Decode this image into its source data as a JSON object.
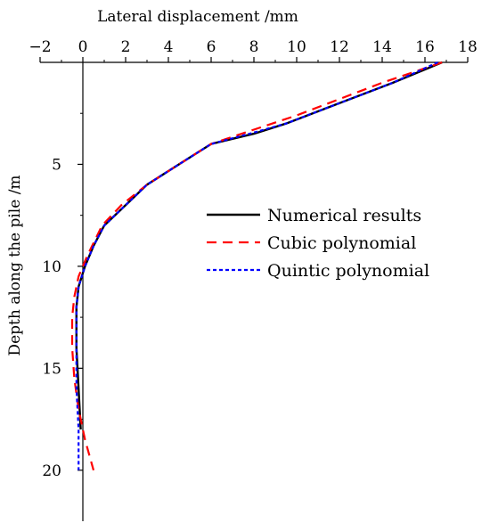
{
  "chart_data": {
    "type": "line",
    "title": "",
    "xlabel": "Lateral displacement /mm",
    "ylabel": "Depth along the pile /m",
    "x_axis_position": "top",
    "y_axis_inverted": true,
    "xlim": [
      -2,
      18
    ],
    "ylim": [
      0,
      22.5
    ],
    "xticks": [
      -2,
      0,
      2,
      4,
      6,
      8,
      10,
      12,
      14,
      16,
      18
    ],
    "yticks": [
      5,
      10,
      15,
      20
    ],
    "grid": false,
    "legend_position": "right-center",
    "series": [
      {
        "name": "Numerical results",
        "color": "#000000",
        "dash": "solid",
        "x": [
          16.8,
          14.5,
          12.0,
          9.5,
          8.0,
          6.0,
          4.5,
          3.0,
          2.0,
          1.0,
          0.5,
          0.1,
          -0.2,
          -0.3,
          -0.3,
          -0.2,
          -0.1
        ],
        "y": [
          0,
          1.0,
          2.0,
          3.0,
          3.5,
          4.0,
          5.0,
          6.0,
          7.0,
          8.0,
          9.0,
          10.0,
          11.0,
          12.0,
          14.0,
          16.0,
          18.0
        ]
      },
      {
        "name": "Cubic polynomial",
        "color": "#ff0000",
        "dash": "long",
        "x": [
          16.8,
          14.0,
          12.0,
          10.0,
          8.0,
          6.0,
          4.5,
          3.0,
          1.8,
          0.9,
          0.2,
          -0.2,
          -0.4,
          -0.5,
          -0.5,
          -0.4,
          -0.2,
          0.1,
          0.5
        ],
        "y": [
          0,
          1.0,
          1.8,
          2.6,
          3.3,
          4.0,
          5.0,
          6.0,
          7.0,
          8.0,
          9.5,
          10.5,
          11.5,
          12.5,
          14.0,
          15.5,
          17.0,
          18.5,
          20.0
        ]
      },
      {
        "name": "Quintic polynomial",
        "color": "#0000ff",
        "dash": "short",
        "x": [
          16.6,
          14.5,
          12.0,
          9.5,
          7.8,
          6.0,
          4.5,
          3.0,
          2.0,
          1.0,
          0.5,
          0.1,
          -0.2,
          -0.3,
          -0.3,
          -0.3,
          -0.2,
          -0.2,
          -0.2
        ],
        "y": [
          0,
          1.0,
          2.0,
          3.0,
          3.5,
          4.0,
          5.0,
          6.0,
          7.0,
          8.0,
          9.0,
          10.0,
          11.0,
          12.0,
          14.0,
          16.0,
          18.0,
          19.0,
          20.0
        ]
      }
    ]
  }
}
